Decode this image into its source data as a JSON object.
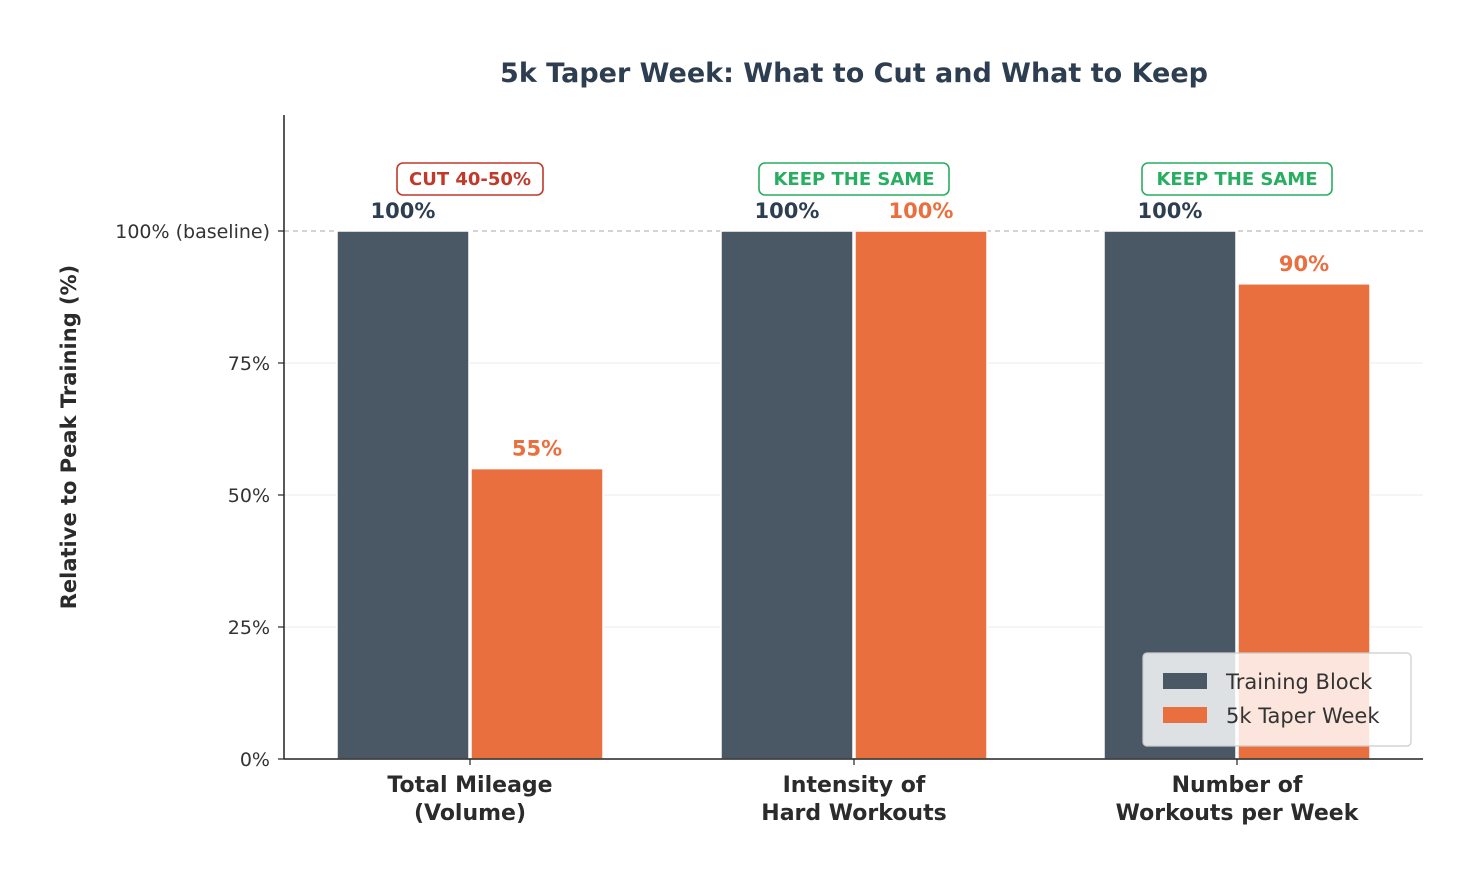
{
  "chart_data": {
    "type": "bar",
    "title": "5k Taper Week: What to Cut and What to Keep",
    "xlabel": "",
    "ylabel": "Relative to Peak Training (%)",
    "ylim": [
      0,
      120
    ],
    "grid": true,
    "legend_position": "bottom-right",
    "categories": [
      [
        "Total Mileage",
        "(Volume)"
      ],
      [
        "Intensity of",
        "Hard Workouts"
      ],
      [
        "Number of",
        "Workouts per Week"
      ]
    ],
    "y_ticks": [
      {
        "value": 0,
        "label": "0%"
      },
      {
        "value": 25,
        "label": "25%"
      },
      {
        "value": 50,
        "label": "50%"
      },
      {
        "value": 75,
        "label": "75%"
      },
      {
        "value": 100,
        "label": "100% (baseline)"
      }
    ],
    "series": [
      {
        "name": "Training Block",
        "color": "#4a5866",
        "values": [
          100,
          100,
          100
        ],
        "value_labels": [
          "100%",
          "100%",
          "100%"
        ]
      },
      {
        "name": "5k Taper Week",
        "color": "#e96f3e",
        "values": [
          55,
          100,
          90
        ],
        "value_labels": [
          "55%",
          "100%",
          "90%"
        ]
      }
    ],
    "annotations": [
      {
        "text": "CUT 40-50%",
        "color": "#c0392b"
      },
      {
        "text": "KEEP THE SAME",
        "color": "#27ae60"
      },
      {
        "text": "KEEP THE SAME",
        "color": "#27ae60"
      }
    ],
    "baseline_value": 100
  },
  "colors": {
    "title": "#2c3e50",
    "axis": "#222222",
    "grid": "#ebebeb",
    "baseline": "#bbbbbb",
    "label_dark": "#2c3e50"
  }
}
